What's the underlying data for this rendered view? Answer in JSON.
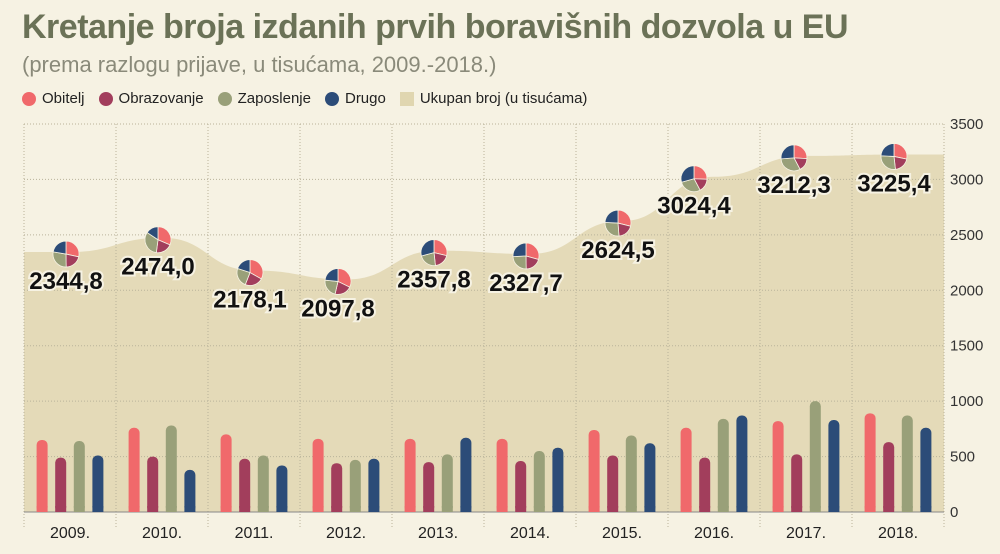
{
  "title": "Kretanje broja izdanih prvih boravišnih dozvola u EU",
  "subtitle": "(prema razlogu prijave, u tisućama, 2009.-2018.)",
  "legend": {
    "items": [
      {
        "label": "Obitelj",
        "color": "#f0696b",
        "shape": "dot"
      },
      {
        "label": "Obrazovanje",
        "color": "#a23e5c",
        "shape": "dot"
      },
      {
        "label": "Zaposlenje",
        "color": "#99a079",
        "shape": "dot"
      },
      {
        "label": "Drugo",
        "color": "#2c4c78",
        "shape": "dot"
      },
      {
        "label": "Ukupan broj (u tisućama)",
        "color": "#e0d6b0",
        "shape": "square"
      }
    ]
  },
  "chart_data": {
    "type": "bar",
    "categories": [
      "2009.",
      "2010.",
      "2011.",
      "2012.",
      "2013.",
      "2014.",
      "2015.",
      "2016.",
      "2017.",
      "2018."
    ],
    "series": [
      {
        "name": "Obitelj",
        "color": "#f0696b",
        "values": [
          650,
          760,
          700,
          660,
          660,
          660,
          740,
          760,
          820,
          890
        ]
      },
      {
        "name": "Obrazovanje",
        "color": "#a23e5c",
        "values": [
          490,
          500,
          480,
          440,
          450,
          460,
          510,
          490,
          520,
          630
        ]
      },
      {
        "name": "Zaposlenje",
        "color": "#99a079",
        "values": [
          640,
          780,
          510,
          470,
          520,
          550,
          690,
          840,
          1000,
          870
        ]
      },
      {
        "name": "Drugo",
        "color": "#2c4c78",
        "values": [
          510,
          380,
          420,
          480,
          670,
          580,
          620,
          870,
          830,
          760
        ]
      }
    ],
    "area": {
      "name": "Ukupan broj (u tisućama)",
      "color": "#e0d6b0",
      "values": [
        2344.8,
        2474.0,
        2178.1,
        2097.8,
        2357.8,
        2327.7,
        2624.5,
        3024.4,
        3212.3,
        3225.4
      ],
      "labels": [
        "2344,8",
        "2474,0",
        "2178,1",
        "2097,8",
        "2357,8",
        "2327,7",
        "2624,5",
        "3024,4",
        "3212,3",
        "3225,4"
      ]
    },
    "ylim": [
      0,
      3500
    ],
    "yticks": [
      0,
      500,
      1000,
      1500,
      2000,
      2500,
      3000,
      3500
    ],
    "ytick_labels": [
      "0",
      "500",
      "1000",
      "1500",
      "2000",
      "2500",
      "3000",
      "3500"
    ],
    "grid": true,
    "legend_position": "top-left"
  }
}
